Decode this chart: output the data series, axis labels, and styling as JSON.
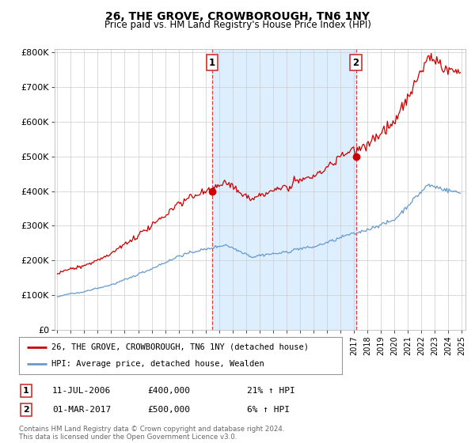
{
  "title": "26, THE GROVE, CROWBOROUGH, TN6 1NY",
  "subtitle": "Price paid vs. HM Land Registry's House Price Index (HPI)",
  "ylim": [
    0,
    800000
  ],
  "yticks": [
    0,
    100000,
    200000,
    300000,
    400000,
    500000,
    600000,
    700000,
    800000
  ],
  "ytick_labels": [
    "£0",
    "£100K",
    "£200K",
    "£300K",
    "£400K",
    "£500K",
    "£600K",
    "£700K",
    "£800K"
  ],
  "legend_line1": "26, THE GROVE, CROWBOROUGH, TN6 1NY (detached house)",
  "legend_line2": "HPI: Average price, detached house, Wealden",
  "annotation1_label": "1",
  "annotation1_date": "11-JUL-2006",
  "annotation1_price": "£400,000",
  "annotation1_hpi": "21% ↑ HPI",
  "annotation2_label": "2",
  "annotation2_date": "01-MAR-2017",
  "annotation2_price": "£500,000",
  "annotation2_hpi": "6% ↑ HPI",
  "footer": "Contains HM Land Registry data © Crown copyright and database right 2024.\nThis data is licensed under the Open Government Licence v3.0.",
  "red_color": "#cc0000",
  "blue_color": "#6699cc",
  "blue_fill_color": "#ddeeff",
  "annotation_box_color": "#cc3333",
  "vline_color": "#dd4444",
  "grid_color": "#cccccc",
  "bg_color": "#ffffff",
  "sale1_t": 2006.5,
  "sale1_p": 400000,
  "sale2_t": 2017.166,
  "sale2_p": 500000,
  "xstart": 1995,
  "xend": 2025
}
